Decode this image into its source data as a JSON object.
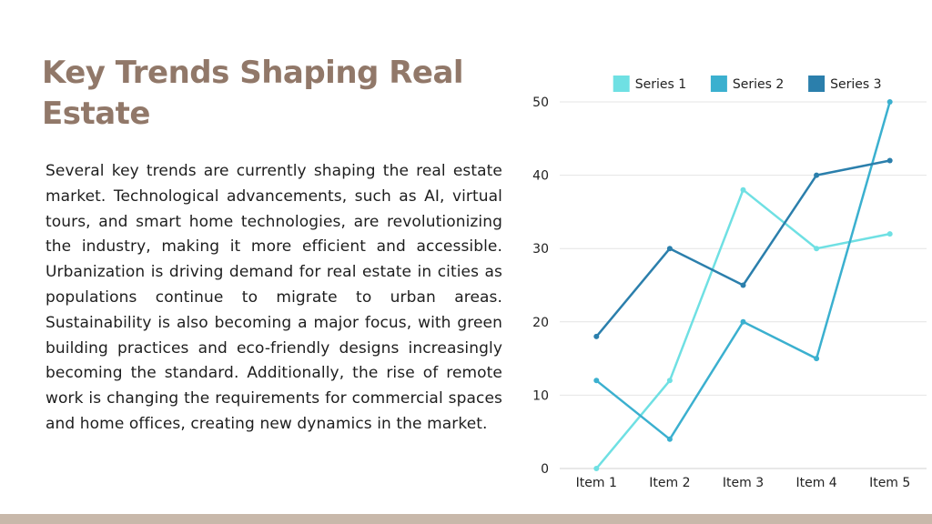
{
  "slide": {
    "title": "Key Trends Shaping Real Estate",
    "body": "Several key trends are currently shaping the real estate market. Technological advancements, such as AI, virtual tours, and smart home technologies, are revolutionizing the industry, making it more efficient and accessible. Urbanization is driving demand for real estate in cities as populations continue to migrate to urban areas. Sustainability is also becoming a major focus, with green building practices and eco-friendly designs increasingly becoming the standard. Additionally, the rise of remote work is changing the requirements for commercial spaces and home offices, creating new dynamics in the market."
  },
  "colors": {
    "title": "#917869",
    "footer_bar": "#c8b8aa"
  },
  "chart_data": {
    "type": "line",
    "categories": [
      "Item 1",
      "Item 2",
      "Item 3",
      "Item 4",
      "Item 5"
    ],
    "series": [
      {
        "name": "Series 1",
        "color": "#6fe0e3",
        "values": [
          0,
          12,
          38,
          30,
          32
        ]
      },
      {
        "name": "Series 2",
        "color": "#3bb0cf",
        "values": [
          12,
          4,
          20,
          15,
          50
        ]
      },
      {
        "name": "Series 3",
        "color": "#2b7fac",
        "values": [
          18,
          30,
          25,
          40,
          42
        ]
      }
    ],
    "yticks": [
      0,
      10,
      20,
      30,
      40,
      50
    ],
    "ylim": [
      0,
      50
    ],
    "grid": true,
    "legend": "top"
  }
}
